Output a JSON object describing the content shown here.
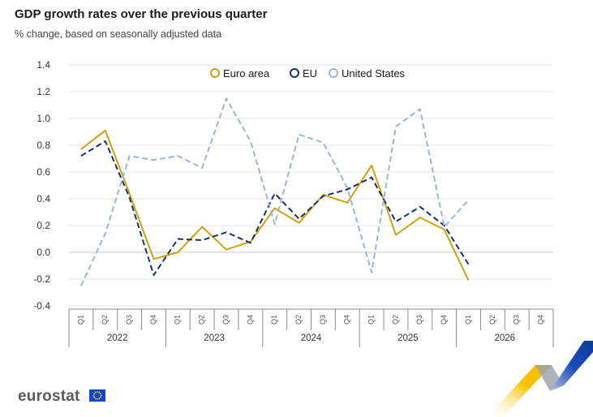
{
  "header": {
    "title": "GDP growth rates over the previous quarter",
    "subtitle": "% change, based on seasonally adjusted data"
  },
  "branding": {
    "logo_text": "eurostat"
  },
  "colors": {
    "euro_area": "#c8a415",
    "eu": "#1a2f6b",
    "us": "#9fb2d9",
    "grid": "#e4e4e4",
    "axis_text": "#333333"
  },
  "chart_data": {
    "type": "line",
    "ylim": [
      -0.4,
      1.4
    ],
    "yticks": [
      -0.4,
      -0.2,
      0.0,
      0.2,
      0.4,
      0.6,
      0.8,
      1.0,
      1.2,
      1.4
    ],
    "ytick_labels": [
      "-0.4",
      "-0.2",
      "0.0",
      "0.2",
      "0.4",
      "0.6",
      "0.8",
      "1.0",
      "1.2",
      "1.4"
    ],
    "grid": true,
    "legend_position": "top-center",
    "years": [
      "2022",
      "2023",
      "2024",
      "2025",
      "2026"
    ],
    "quarters": [
      "Q1",
      "Q2",
      "Q3",
      "Q4"
    ],
    "categories": [
      "2022 Q1",
      "2022 Q2",
      "2022 Q3",
      "2022 Q4",
      "2023 Q1",
      "2023 Q2",
      "2023 Q3",
      "2023 Q4",
      "2024 Q1",
      "2024 Q2",
      "2024 Q3",
      "2024 Q4",
      "2025 Q1",
      "2025 Q2",
      "2025 Q3",
      "2025 Q4",
      "2026 Q1",
      "2026 Q2",
      "2026 Q3",
      "2026 Q4"
    ],
    "series": [
      {
        "name": "Euro area",
        "style": "solid",
        "values": [
          0.77,
          0.91,
          0.44,
          -0.05,
          0.0,
          0.19,
          0.02,
          0.08,
          0.33,
          0.22,
          0.43,
          0.37,
          0.65,
          0.13,
          0.26,
          0.17,
          -0.21,
          null,
          null,
          null
        ]
      },
      {
        "name": "EU",
        "style": "dashed",
        "values": [
          0.72,
          0.83,
          0.41,
          -0.17,
          0.1,
          0.09,
          0.15,
          0.07,
          0.44,
          0.25,
          0.42,
          0.47,
          0.56,
          0.23,
          0.34,
          0.2,
          -0.09,
          null,
          null,
          null
        ]
      },
      {
        "name": "United States",
        "style": "dashed",
        "values": [
          -0.25,
          0.14,
          0.72,
          0.69,
          0.72,
          0.63,
          1.15,
          0.83,
          0.21,
          0.88,
          0.82,
          0.48,
          -0.15,
          0.94,
          1.07,
          0.19,
          0.39,
          null,
          null,
          null
        ]
      }
    ]
  }
}
